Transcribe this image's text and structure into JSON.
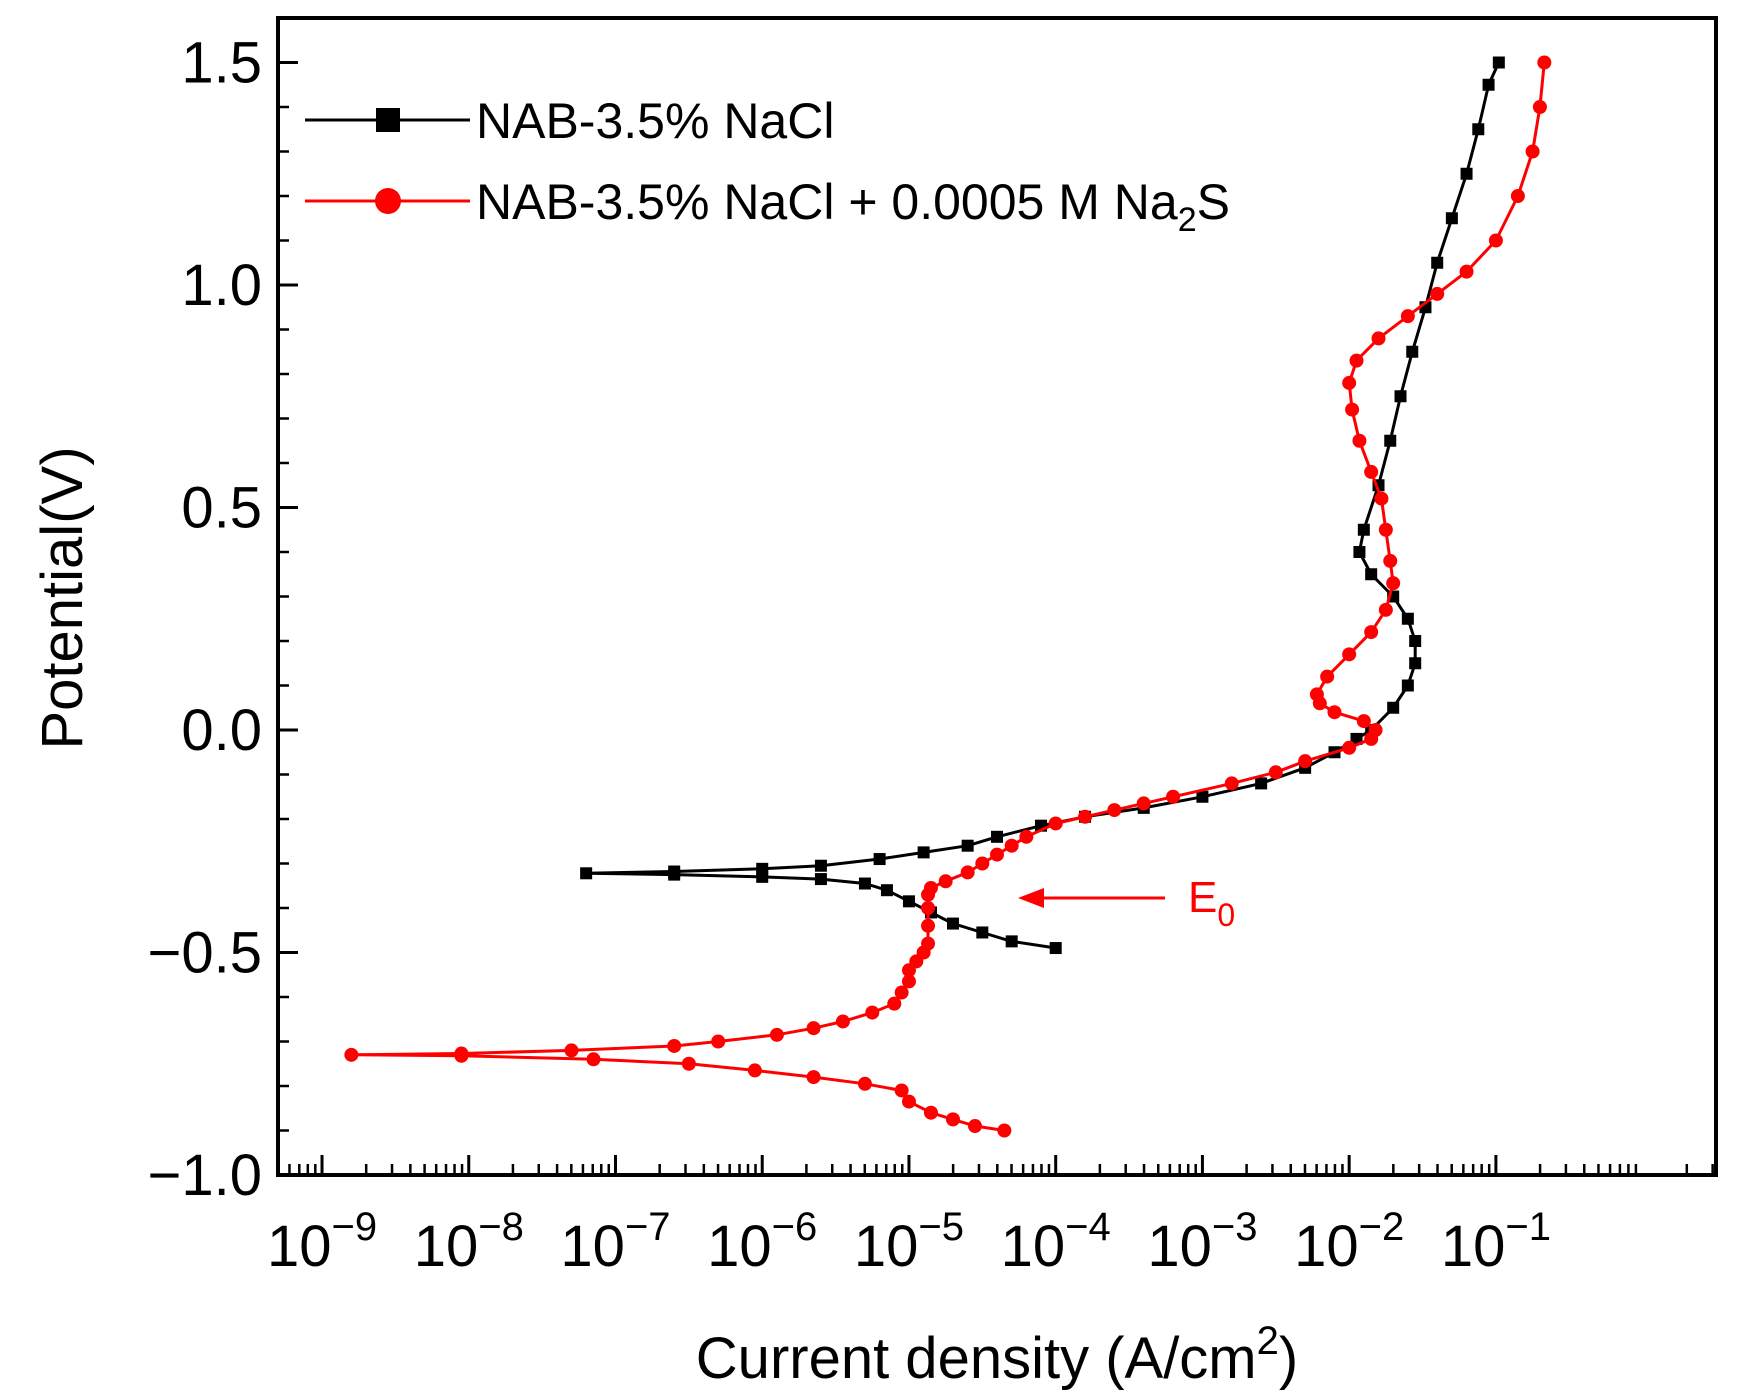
{
  "chart_data": {
    "type": "line",
    "title": "",
    "xlabel": "Current density (A/cm",
    "xlabel_sup": "2",
    "xlabel_end": ")",
    "ylabel": "Potential(V)",
    "xscale": "log",
    "xlim_exp": [
      -9.3,
      0.5
    ],
    "ylim": [
      -1.0,
      1.6
    ],
    "x_ticks": [
      {
        "base": "10",
        "exp": "−9",
        "value": -9
      },
      {
        "base": "10",
        "exp": "−8",
        "value": -8
      },
      {
        "base": "10",
        "exp": "−7",
        "value": -7
      },
      {
        "base": "10",
        "exp": "−6",
        "value": -6
      },
      {
        "base": "10",
        "exp": "−5",
        "value": -5
      },
      {
        "base": "10",
        "exp": "−4",
        "value": -4
      },
      {
        "base": "10",
        "exp": "−3",
        "value": -3
      },
      {
        "base": "10",
        "exp": "−2",
        "value": -2
      },
      {
        "base": "10",
        "exp": "−1",
        "value": -1
      }
    ],
    "y_ticks": [
      {
        "label": "1.5",
        "value": 1.5
      },
      {
        "label": "1.0",
        "value": 1.0
      },
      {
        "label": "0.5",
        "value": 0.5
      },
      {
        "label": "0.0",
        "value": 0.0
      },
      {
        "label": "−0.5",
        "value": -0.5
      },
      {
        "label": "−1.0",
        "value": -1.0
      }
    ],
    "legend": {
      "position": "top-left",
      "entries": [
        {
          "label": "NAB-3.5% NaCl",
          "sub": "",
          "label_end": "",
          "color": "#000000",
          "marker": "square"
        },
        {
          "label": "NAB-3.5% NaCl + 0.0005 M Na",
          "sub": "2",
          "label_end": "S",
          "color": "#ff0000",
          "marker": "circle"
        }
      ]
    },
    "annotation": {
      "text": "E",
      "sub": "0",
      "color": "#ff0000",
      "points_to_log_x": -4.65,
      "points_to_y": -0.36
    },
    "series": [
      {
        "name": "NAB-3.5% NaCl",
        "color": "#000000",
        "marker": "square",
        "points": [
          [
            -4.0,
            -0.49
          ],
          [
            -4.3,
            -0.475
          ],
          [
            -4.5,
            -0.455
          ],
          [
            -4.7,
            -0.435
          ],
          [
            -4.85,
            -0.41
          ],
          [
            -5.0,
            -0.385
          ],
          [
            -5.15,
            -0.36
          ],
          [
            -5.3,
            -0.345
          ],
          [
            -5.6,
            -0.335
          ],
          [
            -6.0,
            -0.33
          ],
          [
            -6.6,
            -0.325
          ],
          [
            -7.2,
            -0.322
          ],
          [
            -6.6,
            -0.318
          ],
          [
            -6.0,
            -0.312
          ],
          [
            -5.6,
            -0.305
          ],
          [
            -5.2,
            -0.29
          ],
          [
            -4.9,
            -0.275
          ],
          [
            -4.6,
            -0.26
          ],
          [
            -4.4,
            -0.24
          ],
          [
            -4.1,
            -0.215
          ],
          [
            -3.8,
            -0.195
          ],
          [
            -3.4,
            -0.175
          ],
          [
            -3.0,
            -0.15
          ],
          [
            -2.6,
            -0.12
          ],
          [
            -2.3,
            -0.085
          ],
          [
            -2.1,
            -0.05
          ],
          [
            -1.95,
            -0.02
          ],
          [
            -1.85,
            0.0
          ],
          [
            -1.7,
            0.05
          ],
          [
            -1.6,
            0.1
          ],
          [
            -1.55,
            0.15
          ],
          [
            -1.55,
            0.2
          ],
          [
            -1.6,
            0.25
          ],
          [
            -1.7,
            0.3
          ],
          [
            -1.85,
            0.35
          ],
          [
            -1.93,
            0.4
          ],
          [
            -1.9,
            0.45
          ],
          [
            -1.8,
            0.55
          ],
          [
            -1.72,
            0.65
          ],
          [
            -1.65,
            0.75
          ],
          [
            -1.57,
            0.85
          ],
          [
            -1.48,
            0.95
          ],
          [
            -1.4,
            1.05
          ],
          [
            -1.3,
            1.15
          ],
          [
            -1.2,
            1.25
          ],
          [
            -1.12,
            1.35
          ],
          [
            -1.05,
            1.45
          ],
          [
            -0.98,
            1.5
          ]
        ]
      },
      {
        "name": "NAB-3.5% NaCl + 0.0005 M Na2S",
        "color": "#ff0000",
        "marker": "circle",
        "points": [
          [
            -4.35,
            -0.9
          ],
          [
            -4.55,
            -0.89
          ],
          [
            -4.7,
            -0.875
          ],
          [
            -4.85,
            -0.86
          ],
          [
            -5.0,
            -0.835
          ],
          [
            -5.05,
            -0.81
          ],
          [
            -5.3,
            -0.795
          ],
          [
            -5.65,
            -0.78
          ],
          [
            -6.05,
            -0.765
          ],
          [
            -6.5,
            -0.75
          ],
          [
            -7.15,
            -0.74
          ],
          [
            -8.05,
            -0.732
          ],
          [
            -8.8,
            -0.73
          ],
          [
            -8.05,
            -0.727
          ],
          [
            -7.3,
            -0.72
          ],
          [
            -6.6,
            -0.71
          ],
          [
            -6.3,
            -0.7
          ],
          [
            -5.9,
            -0.685
          ],
          [
            -5.65,
            -0.67
          ],
          [
            -5.45,
            -0.655
          ],
          [
            -5.25,
            -0.635
          ],
          [
            -5.1,
            -0.615
          ],
          [
            -5.05,
            -0.59
          ],
          [
            -5.0,
            -0.565
          ],
          [
            -5.0,
            -0.54
          ],
          [
            -4.95,
            -0.52
          ],
          [
            -4.9,
            -0.5
          ],
          [
            -4.87,
            -0.48
          ],
          [
            -4.87,
            -0.44
          ],
          [
            -4.87,
            -0.4
          ],
          [
            -4.87,
            -0.37
          ],
          [
            -4.85,
            -0.355
          ],
          [
            -4.75,
            -0.34
          ],
          [
            -4.6,
            -0.32
          ],
          [
            -4.5,
            -0.3
          ],
          [
            -4.4,
            -0.28
          ],
          [
            -4.3,
            -0.26
          ],
          [
            -4.2,
            -0.24
          ],
          [
            -4.0,
            -0.21
          ],
          [
            -3.8,
            -0.195
          ],
          [
            -3.6,
            -0.18
          ],
          [
            -3.4,
            -0.165
          ],
          [
            -3.2,
            -0.15
          ],
          [
            -2.8,
            -0.12
          ],
          [
            -2.5,
            -0.095
          ],
          [
            -2.3,
            -0.07
          ],
          [
            -2.0,
            -0.04
          ],
          [
            -1.85,
            -0.02
          ],
          [
            -1.82,
            0.0
          ],
          [
            -1.9,
            0.02
          ],
          [
            -2.1,
            0.04
          ],
          [
            -2.2,
            0.06
          ],
          [
            -2.22,
            0.08
          ],
          [
            -2.15,
            0.12
          ],
          [
            -2.0,
            0.17
          ],
          [
            -1.85,
            0.22
          ],
          [
            -1.75,
            0.27
          ],
          [
            -1.7,
            0.33
          ],
          [
            -1.72,
            0.38
          ],
          [
            -1.75,
            0.45
          ],
          [
            -1.78,
            0.52
          ],
          [
            -1.85,
            0.58
          ],
          [
            -1.93,
            0.65
          ],
          [
            -1.98,
            0.72
          ],
          [
            -2.0,
            0.78
          ],
          [
            -1.95,
            0.83
          ],
          [
            -1.8,
            0.88
          ],
          [
            -1.6,
            0.93
          ],
          [
            -1.4,
            0.98
          ],
          [
            -1.2,
            1.03
          ],
          [
            -1.0,
            1.1
          ],
          [
            -0.85,
            1.2
          ],
          [
            -0.75,
            1.3
          ],
          [
            -0.7,
            1.4
          ],
          [
            -0.67,
            1.5
          ]
        ]
      }
    ]
  }
}
